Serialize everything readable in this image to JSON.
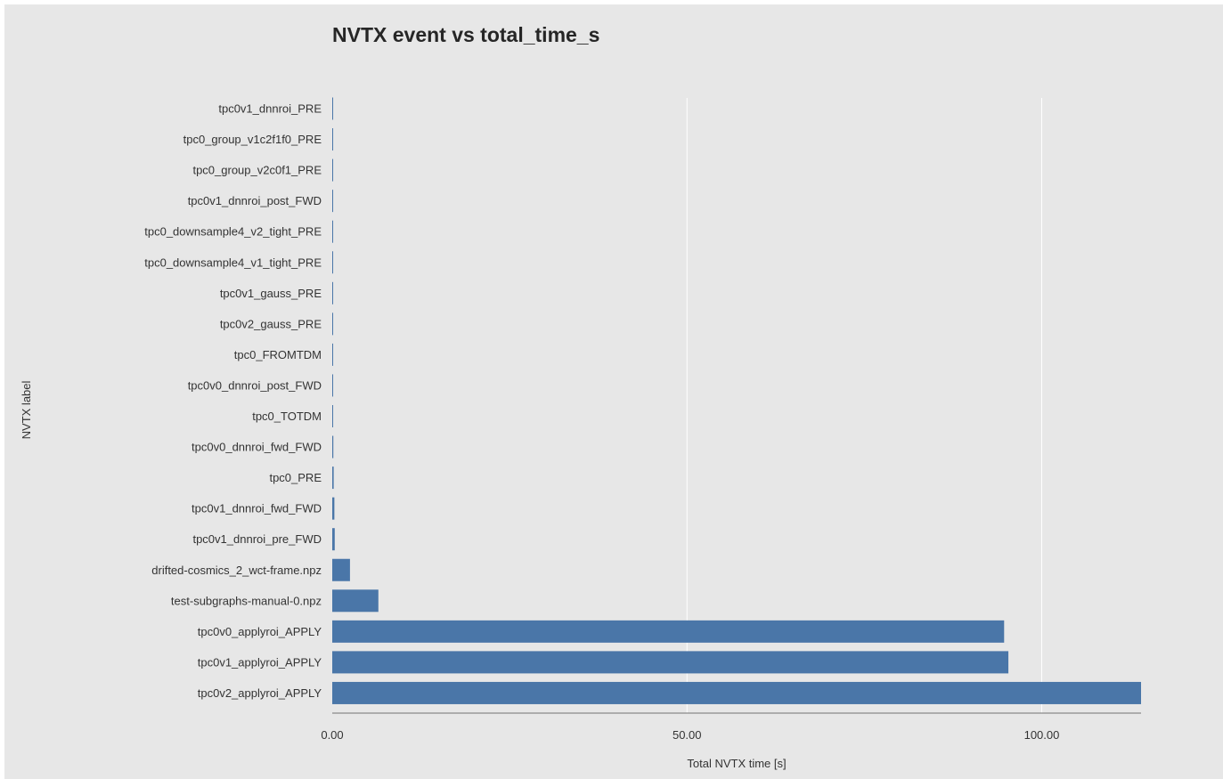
{
  "chart_data": {
    "type": "bar",
    "orientation": "horizontal",
    "title": "NVTX event vs total_time_s",
    "xlabel": "Total NVTX time [s]",
    "ylabel": "NVTX label",
    "xlim": [
      0,
      114
    ],
    "xticks": [
      0,
      50,
      100
    ],
    "xtick_labels": [
      "0.00",
      "50.00",
      "100.00"
    ],
    "grid": "vertical",
    "bar_color": "#4a76a8",
    "categories": [
      "tpc0v1_dnnroi_PRE",
      "tpc0_group_v1c2f1f0_PRE",
      "tpc0_group_v2c0f1_PRE",
      "tpc0v1_dnnroi_post_FWD",
      "tpc0_downsample4_v2_tight_PRE",
      "tpc0_downsample4_v1_tight_PRE",
      "tpc0v1_gauss_PRE",
      "tpc0v2_gauss_PRE",
      "tpc0_FROMTDM",
      "tpc0v0_dnnroi_post_FWD",
      "tpc0_TOTDM",
      "tpc0v0_dnnroi_fwd_FWD",
      "tpc0_PRE",
      "tpc0v1_dnnroi_fwd_FWD",
      "tpc0v1_dnnroi_pre_FWD",
      "drifted-cosmics_2_wct-frame.npz",
      "test-subgraphs-manual-0.npz",
      "tpc0v0_applyroi_APPLY",
      "tpc0v1_applyroi_APPLY",
      "tpc0v2_applyroi_APPLY"
    ],
    "values": [
      0.01,
      0.01,
      0.01,
      0.02,
      0.02,
      0.02,
      0.03,
      0.03,
      0.05,
      0.06,
      0.08,
      0.15,
      0.2,
      0.3,
      0.35,
      2.5,
      6.5,
      94.7,
      95.3,
      114.0
    ]
  }
}
